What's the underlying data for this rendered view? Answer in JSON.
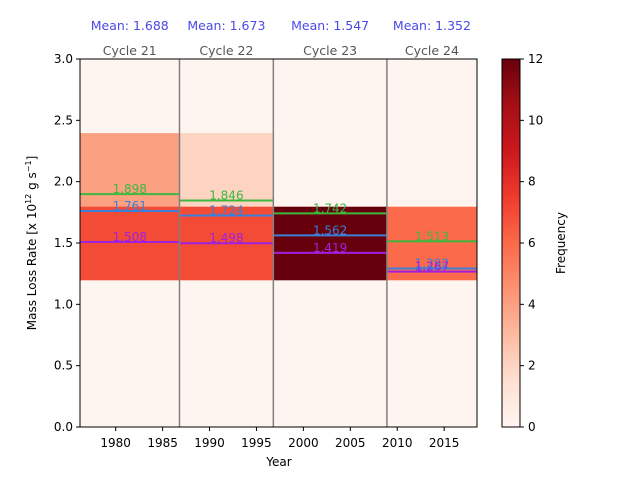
{
  "chart_data": {
    "type": "heatmap",
    "xlabel": "Year",
    "ylabel_main": "Mass Loss Rate [x 10",
    "ylabel_exp1": "12",
    "ylabel_mid": " g s",
    "ylabel_exp2": "−1",
    "ylabel_end": "]",
    "xlim": [
      1976.2,
      2018.5
    ],
    "ylim": [
      0,
      3.0
    ],
    "xticks": [
      1980,
      1985,
      1990,
      1995,
      2000,
      2005,
      2010,
      2015
    ],
    "yticks": [
      "0.0",
      "0.5",
      "1.0",
      "1.5",
      "2.0",
      "2.5",
      "3.0"
    ],
    "colorbar": {
      "label": "Frequency",
      "min": 0,
      "max": 12,
      "ticks": [
        0,
        2,
        4,
        6,
        8,
        10,
        12
      ]
    },
    "y_bins": [
      0,
      0.3,
      0.6,
      0.9,
      1.2,
      1.5,
      1.8,
      2.1,
      2.4,
      2.7,
      3.0
    ],
    "cycles": [
      {
        "label": "Cycle 21",
        "mean_label": "Mean: 1.688",
        "start": 1976.2,
        "end": 1986.8,
        "counts": [
          0,
          0,
          0,
          0,
          7,
          7,
          4,
          4,
          0,
          0
        ],
        "lines": [
          {
            "value": 1.898,
            "label": "1.898",
            "color": "#3db83d"
          },
          {
            "value": 1.761,
            "label": "1.761",
            "color": "#3b7fd6"
          },
          {
            "value": 1.508,
            "label": "1.508",
            "color": "#a020e0"
          }
        ]
      },
      {
        "label": "Cycle 22",
        "mean_label": "Mean: 1.673",
        "start": 1986.8,
        "end": 1996.8,
        "counts": [
          0,
          0,
          0,
          0,
          7,
          7,
          2,
          2,
          0,
          0
        ],
        "lines": [
          {
            "value": 1.846,
            "label": "1.846",
            "color": "#3db83d"
          },
          {
            "value": 1.724,
            "label": "1.724",
            "color": "#3b7fd6"
          },
          {
            "value": 1.498,
            "label": "1.498",
            "color": "#a020e0"
          }
        ]
      },
      {
        "label": "Cycle 23",
        "mean_label": "Mean: 1.547",
        "start": 1996.8,
        "end": 2008.9,
        "counts": [
          0,
          0,
          0,
          0,
          12,
          12,
          0,
          0,
          0,
          0
        ],
        "lines": [
          {
            "value": 1.742,
            "label": "1.742",
            "color": "#3db83d"
          },
          {
            "value": 1.562,
            "label": "1.562",
            "color": "#3b7fd6"
          },
          {
            "value": 1.419,
            "label": "1.419",
            "color": "#a020e0"
          }
        ]
      },
      {
        "label": "Cycle 24",
        "mean_label": "Mean: 1.352",
        "start": 2008.9,
        "end": 2018.5,
        "counts": [
          0,
          0,
          0,
          0,
          6,
          6,
          0,
          0,
          0,
          0
        ],
        "lines": [
          {
            "value": 1.513,
            "label": "1.513",
            "color": "#3db83d"
          },
          {
            "value": 1.292,
            "label": "1.292",
            "color": "#3b7fd6"
          },
          {
            "value": 1.267,
            "label": "1.267",
            "color": "#a020e0"
          }
        ]
      }
    ],
    "colors": {
      "mean_text": "#4a4ae6",
      "cycle_text": "#555555",
      "separator": "#808080"
    }
  }
}
